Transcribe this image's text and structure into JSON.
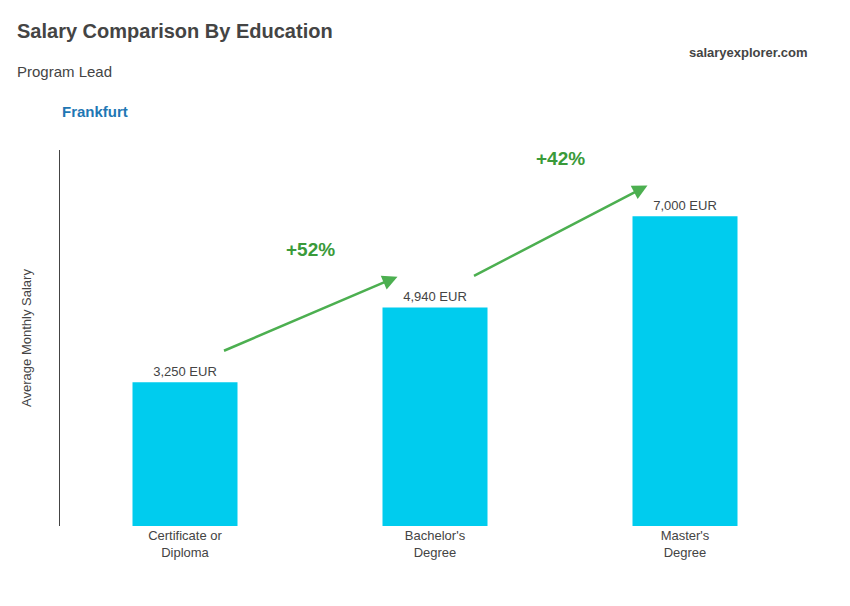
{
  "chart_data": {
    "type": "bar",
    "title": "Salary Comparison By Education",
    "subtitle": "Program Lead",
    "categories": [
      "Certificate or\nDiploma",
      "Bachelor's\nDegree",
      "Master's\nDegree"
    ],
    "values": [
      3250,
      4940,
      7000
    ],
    "value_labels": [
      "3,250 EUR",
      "4,940 EUR",
      "7,000 EUR"
    ],
    "data_labels": true,
    "color": "#00ccee",
    "ylabel": "Average Monthly Salary",
    "ylim": [
      0,
      8500
    ],
    "yticks": [],
    "tick_labels": "x",
    "grid": false,
    "annotations": [
      {
        "text": "Frankfurt"
      },
      {
        "text": "salaryexplorer.com"
      },
      {
        "text": "+52%",
        "from": 0,
        "to": 1
      },
      {
        "text": "+42%",
        "from": 1,
        "to": 2
      }
    ]
  }
}
